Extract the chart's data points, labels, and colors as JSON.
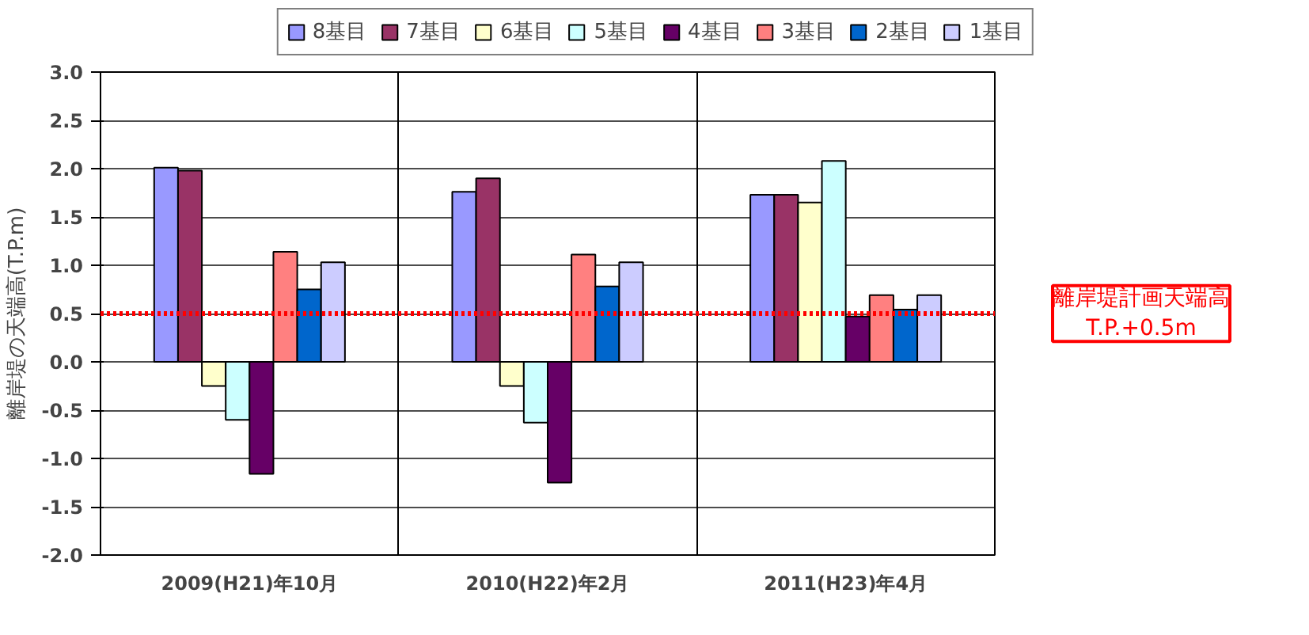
{
  "chart_data": {
    "type": "bar",
    "ylabel": "離岸堤の天端高(T.P.m)",
    "categories": [
      "2009(H21)年10月",
      "2010(H22)年2月",
      "2011(H23)年4月"
    ],
    "series": [
      {
        "name": "8基目",
        "color": "#9999ff",
        "values": [
          2.01,
          1.76,
          1.73
        ]
      },
      {
        "name": "7基目",
        "color": "#993366",
        "values": [
          1.98,
          1.9,
          1.73
        ]
      },
      {
        "name": "6基目",
        "color": "#ffffcc",
        "values": [
          -0.25,
          -0.25,
          1.65
        ]
      },
      {
        "name": "5基目",
        "color": "#ccffff",
        "values": [
          -0.6,
          -0.63,
          2.08
        ]
      },
      {
        "name": "4基目",
        "color": "#660066",
        "values": [
          -1.16,
          -1.25,
          0.47
        ]
      },
      {
        "name": "3基目",
        "color": "#ff8080",
        "values": [
          1.14,
          1.11,
          0.69
        ]
      },
      {
        "name": "2基目",
        "color": "#0066cc",
        "values": [
          0.75,
          0.78,
          0.54
        ]
      },
      {
        "name": "1基目",
        "color": "#ccccff",
        "values": [
          1.03,
          1.03,
          0.69
        ]
      }
    ],
    "ylim": [
      -2.0,
      3.0
    ],
    "yticks": [
      {
        "value": -2,
        "label": "-2.0"
      },
      {
        "value": -1.5,
        "label": "-1.5"
      },
      {
        "value": -1,
        "label": "-1.0"
      },
      {
        "value": -0.5,
        "label": "-0.5"
      },
      {
        "value": 0,
        "label": "0.0"
      },
      {
        "value": 0.5,
        "label": "0.5"
      },
      {
        "value": 1,
        "label": "1.0"
      },
      {
        "value": 1.5,
        "label": "1.5"
      },
      {
        "value": 2,
        "label": "2.0"
      },
      {
        "value": 2.5,
        "label": "2.5"
      },
      {
        "value": 3,
        "label": "3.0"
      }
    ],
    "ref_lines": [
      {
        "axis": "y",
        "value": 0.5,
        "label": "離岸堤計画天端高\nT.P.+0.5m",
        "color": "#ff0000",
        "line_style": "dotted"
      }
    ],
    "grid": true,
    "legend": "top"
  }
}
